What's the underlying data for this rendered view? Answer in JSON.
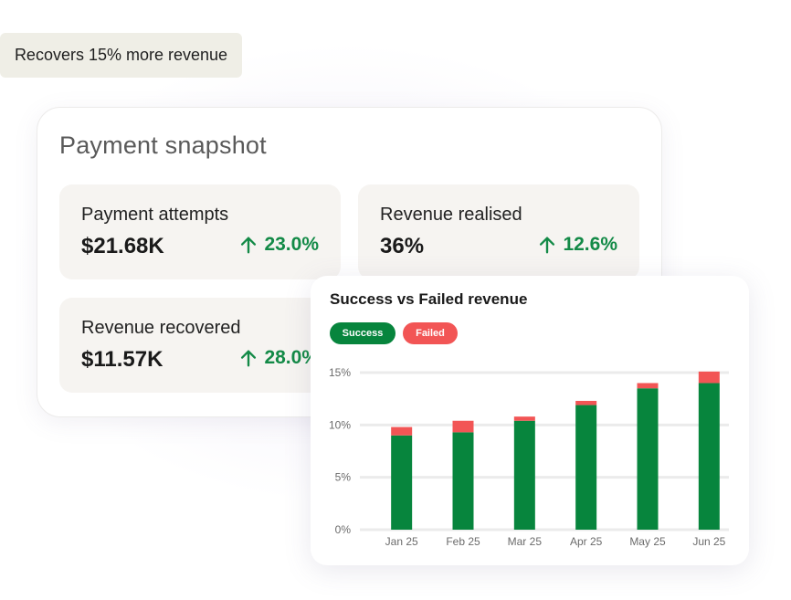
{
  "badge": {
    "text": "Recovers 15% more revenue"
  },
  "snapshot": {
    "title": "Payment snapshot",
    "kpis": [
      {
        "label": "Payment attempts",
        "value": "$21.68K",
        "change": "23.0%"
      },
      {
        "label": "Revenue realised",
        "value": "36%",
        "change": "12.6%"
      },
      {
        "label": "Revenue recovered",
        "value": "$11.57K",
        "change": "28.0%"
      }
    ]
  },
  "colors": {
    "success": "#07853d",
    "failed": "#f25555",
    "positive": "#138a47"
  },
  "chart_data": {
    "type": "bar",
    "stacked": true,
    "title": "Success vs Failed revenue",
    "categories": [
      "Jan 25",
      "Feb 25",
      "Mar 25",
      "Apr 25",
      "May 25",
      "Jun 25"
    ],
    "series": [
      {
        "name": "Success",
        "values": [
          9.0,
          9.3,
          10.4,
          11.9,
          13.5,
          14.0
        ]
      },
      {
        "name": "Failed",
        "values": [
          0.8,
          1.1,
          0.4,
          0.4,
          0.5,
          1.1
        ]
      }
    ],
    "yticks": [
      "0%",
      "5%",
      "10%",
      "15%"
    ],
    "ylim": [
      0,
      15
    ],
    "grid": true,
    "legend_position": "top-left"
  }
}
